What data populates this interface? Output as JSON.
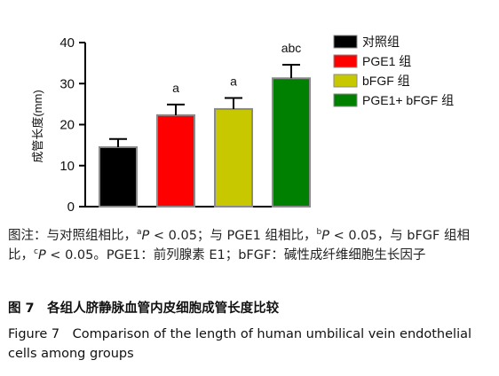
{
  "chart_data": {
    "type": "bar",
    "ylabel": "成管长度(mm)",
    "ylim": [
      0,
      40
    ],
    "yticks": [
      0,
      10,
      20,
      30,
      40
    ],
    "categories": [
      "对照组",
      "PGE1 组",
      "bFGF 组",
      "PGE1+ bFGF 组"
    ],
    "values": [
      14.5,
      22.3,
      23.8,
      31.3
    ],
    "errors": [
      2.0,
      2.6,
      2.7,
      3.3
    ],
    "significance": [
      "",
      "a",
      "a",
      "abc"
    ],
    "colors": [
      "#000000",
      "#ff0000",
      "#c8c800",
      "#008000"
    ],
    "legend": {
      "position": "top-right",
      "entries": [
        "对照组",
        "PGE1 组",
        "bFGF 组",
        "PGE1+ bFGF 组"
      ]
    }
  },
  "caption": {
    "note_prefix": "图注：与对照组相比，",
    "note_sup_a": "a",
    "note_p1": "P",
    "note_t1": " < 0.05；与 PGE1 组相比，",
    "note_sup_b": "b",
    "note_p2": "P",
    "note_t2": " < 0.05，与 bFGF 组相比，",
    "note_sup_c": "c",
    "note_p3": "P",
    "note_t3": " < 0.05。PGE1：前列腺素 E1；bFGF：碱性成纤维细胞生长因子",
    "figure_cn": "图 7　各组人脐静脉血管内皮细胞成管长度比较",
    "figure_en": "Figure 7　Comparison of the length of human umbilical vein endothelial cells among groups"
  }
}
